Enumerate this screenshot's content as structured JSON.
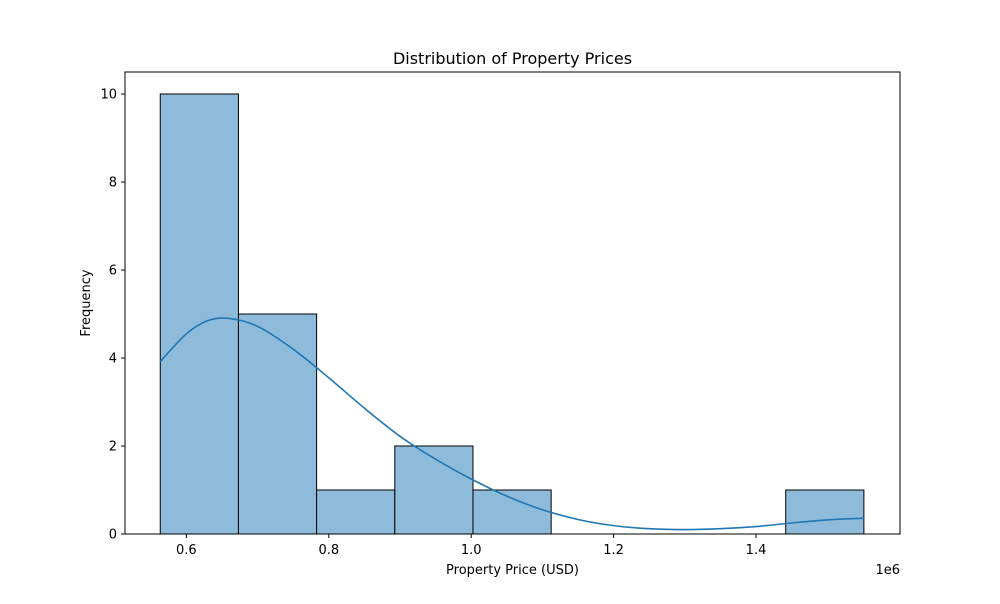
{
  "chart_data": {
    "type": "bar",
    "title": "Distribution of Property Prices",
    "xlabel": "Property Price (USD)",
    "ylabel": "Frequency",
    "x_offset_label": "1e6",
    "xlim": [
      0.5138,
      1.6022
    ],
    "ylim": [
      0,
      10.5
    ],
    "x_ticks": [
      0.6,
      0.8,
      1.0,
      1.2,
      1.4
    ],
    "x_tick_labels": [
      "0.6",
      "0.8",
      "1.0",
      "1.2",
      "1.4"
    ],
    "y_ticks": [
      0,
      2,
      4,
      6,
      8,
      10
    ],
    "y_tick_labels": [
      "0",
      "2",
      "4",
      "6",
      "8",
      "10"
    ],
    "bins": [
      {
        "start": 0.5633,
        "end": 0.6731,
        "count": 10
      },
      {
        "start": 0.6731,
        "end": 0.7829,
        "count": 5
      },
      {
        "start": 0.7829,
        "end": 0.8927,
        "count": 1
      },
      {
        "start": 0.8927,
        "end": 1.0025,
        "count": 2
      },
      {
        "start": 1.0025,
        "end": 1.1123,
        "count": 1
      },
      {
        "start": 1.1123,
        "end": 1.2221,
        "count": 0
      },
      {
        "start": 1.2221,
        "end": 1.3319,
        "count": 0
      },
      {
        "start": 1.3319,
        "end": 1.4417,
        "count": 0
      },
      {
        "start": 1.4417,
        "end": 1.5515,
        "count": 1
      }
    ],
    "kde": {
      "x": [
        0.5633,
        0.6,
        0.63,
        0.66,
        0.7,
        0.75,
        0.8,
        0.85,
        0.9,
        0.95,
        1.0,
        1.05,
        1.1,
        1.15,
        1.2,
        1.25,
        1.3,
        1.35,
        1.4,
        1.45,
        1.5,
        1.5515
      ],
      "y": [
        3.92,
        4.55,
        4.85,
        4.9,
        4.72,
        4.2,
        3.55,
        2.86,
        2.22,
        1.7,
        1.25,
        0.86,
        0.55,
        0.33,
        0.19,
        0.12,
        0.1,
        0.12,
        0.17,
        0.25,
        0.32,
        0.36
      ]
    },
    "grid": false,
    "colors": {
      "bar_fill": "#8fbbdb",
      "bar_edge": "#000000",
      "kde_line": "#1f77b4",
      "axis": "#000000"
    }
  }
}
